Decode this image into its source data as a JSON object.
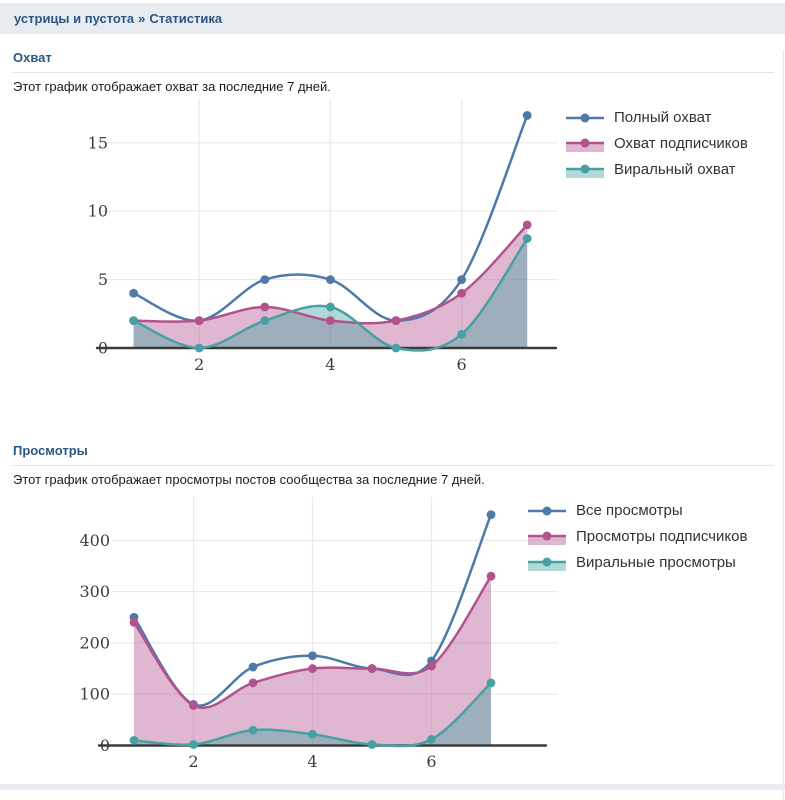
{
  "header": {
    "breadcrumb_community": "устрицы и пустота",
    "breadcrumb_separator": "»",
    "breadcrumb_page": "Статистика"
  },
  "sections": [
    {
      "title": "Охват",
      "description": "Этот график отображает охват за последние 7 дней."
    },
    {
      "title": "Просмотры",
      "description": "Этот график отображает просмотры постов сообщества за последние 7 дней."
    }
  ],
  "colors": {
    "link_accent": "#2a5885",
    "header_bar_bg": "#e8ecf1",
    "series_blue": "#4d7aa9",
    "series_pink": "#b2538e",
    "series_teal": "#47a1a3",
    "axis": "#3b3b3b",
    "grid": "#eaeaea",
    "tick_label": "#3d3d3d"
  },
  "chart_data": [
    {
      "type": "area",
      "title": "Охват",
      "x": [
        1,
        2,
        3,
        4,
        5,
        6,
        7
      ],
      "series": [
        {
          "name": "Полный охват",
          "color": "#4d7aa9",
          "fill": false,
          "values": [
            4,
            2,
            5,
            5,
            2,
            5,
            17
          ]
        },
        {
          "name": "Охват подписчиков",
          "color": "#b2538e",
          "fill": true,
          "values": [
            2,
            2,
            3,
            2,
            2,
            4,
            9
          ]
        },
        {
          "name": "Виральный охват",
          "color": "#47a1a3",
          "fill": true,
          "values": [
            2,
            0,
            2,
            3,
            0,
            1,
            8
          ]
        }
      ],
      "xticks": [
        2,
        4,
        6
      ],
      "yticks": [
        0,
        5,
        10,
        15
      ],
      "xlim": [
        0.5,
        7.4
      ],
      "ylim": [
        0,
        18.3
      ],
      "grid": true,
      "legend_position": "right-top",
      "xlabel": "",
      "ylabel": ""
    },
    {
      "type": "area",
      "title": "Просмотры",
      "x": [
        1,
        2,
        3,
        4,
        5,
        6,
        7
      ],
      "series": [
        {
          "name": "Все просмотры",
          "color": "#4d7aa9",
          "fill": false,
          "values": [
            250,
            80,
            153,
            175,
            150,
            165,
            450
          ]
        },
        {
          "name": "Просмотры подписчиков",
          "color": "#b2538e",
          "fill": true,
          "values": [
            240,
            78,
            122,
            150,
            150,
            155,
            330
          ]
        },
        {
          "name": "Виральные просмотры",
          "color": "#47a1a3",
          "fill": true,
          "values": [
            10,
            2,
            30,
            22,
            2,
            12,
            122
          ]
        }
      ],
      "xticks": [
        2,
        4,
        6
      ],
      "yticks": [
        0,
        100,
        200,
        300,
        400
      ],
      "xlim": [
        0.5,
        7.5
      ],
      "ylim": [
        0,
        470
      ],
      "grid": true,
      "legend_position": "right-top",
      "xlabel": "",
      "ylabel": ""
    }
  ]
}
